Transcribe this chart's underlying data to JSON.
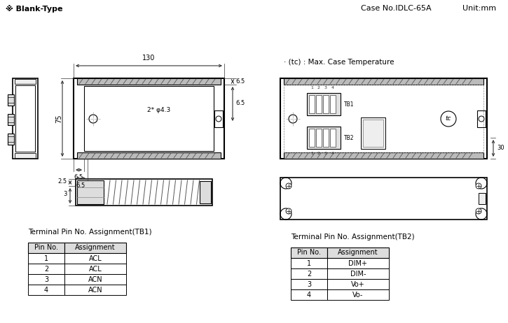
{
  "title_left": "※ Blank-Type",
  "title_right_case": "Case No.IDLC-65A",
  "title_right_unit": "Unit:mm",
  "dim_130": "130",
  "dim_6_5_top": "6.5",
  "dim_6_5_right": "6.5",
  "dim_75": "75",
  "dim_6_5_bottom_left": "6.5",
  "dim_6_5_bottom": "6.5",
  "dim_hole": "2* φ4.3",
  "dim_2_5": "2.5",
  "dim_3": "3",
  "dim_30": "30",
  "tc_label": "· (tc) : Max. Case Temperature",
  "tb1_title": "Terminal Pin No. Assignment(TB1)",
  "tb1_headers": [
    "Pin No.",
    "Assignment"
  ],
  "tb1_data": [
    [
      "1",
      "ACL"
    ],
    [
      "2",
      "ACL"
    ],
    [
      "3",
      "ACN"
    ],
    [
      "4",
      "ACN"
    ]
  ],
  "tb2_title": "Terminal Pin No. Assignment(TB2)",
  "tb2_headers": [
    "Pin No.",
    "Assignment"
  ],
  "tb2_data": [
    [
      "1",
      "DIM+"
    ],
    [
      "2",
      "DIM-"
    ],
    [
      "3",
      "Vo+"
    ],
    [
      "4",
      "Vo-"
    ]
  ],
  "bg_color": "#ffffff",
  "line_color": "#000000",
  "dim_color": "#333333"
}
